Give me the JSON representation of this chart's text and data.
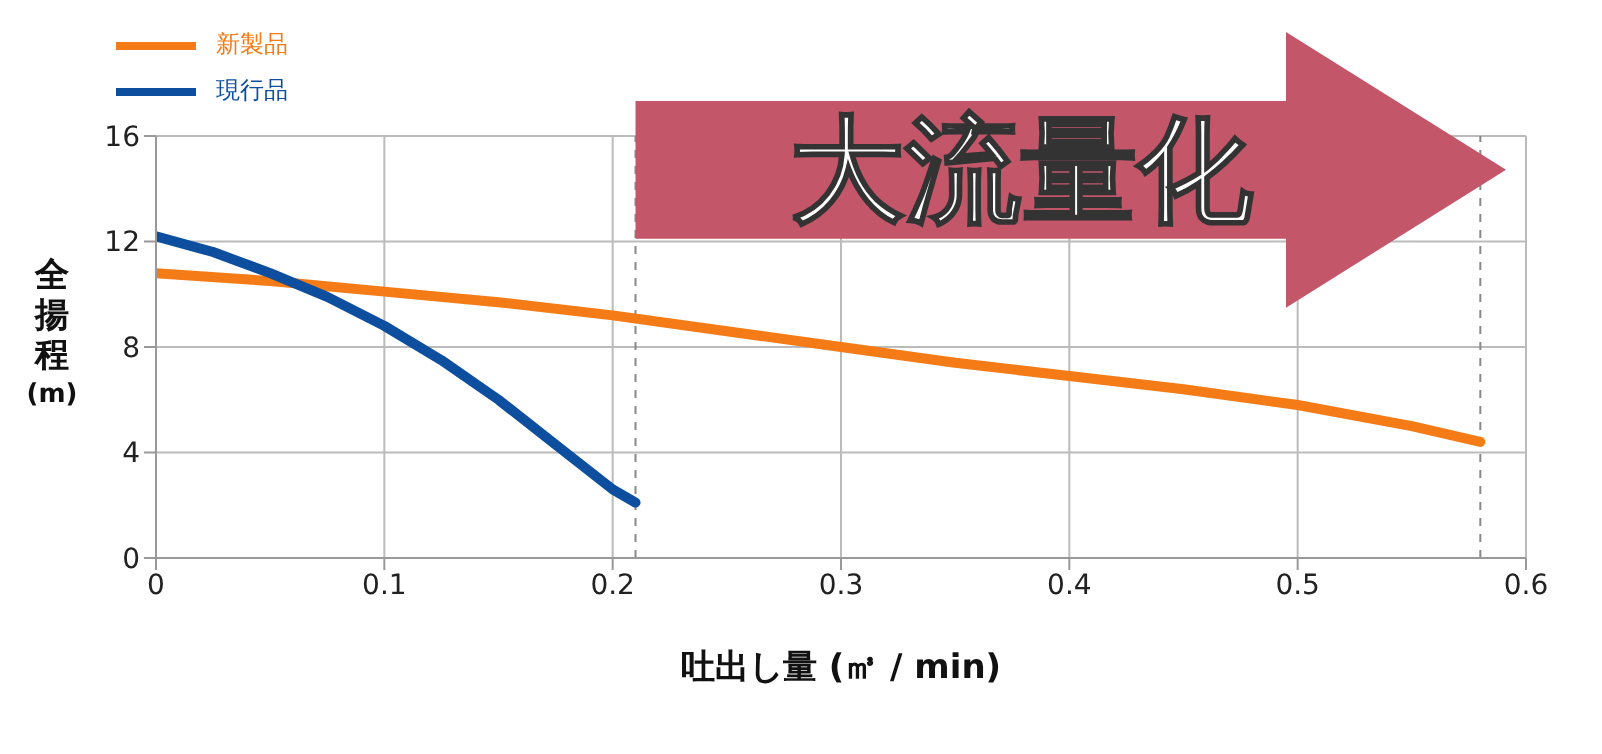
{
  "chart_data": {
    "type": "line",
    "xlabel": "吐出し量 (㎥ / min)",
    "ylabel": "全揚程 (m)",
    "annotations": [
      "大流量化"
    ],
    "xlim": [
      0,
      0.6
    ],
    "xticks": [
      0,
      0.1,
      0.2,
      0.3,
      0.4,
      0.5,
      0.6
    ],
    "ylim": [
      0,
      16
    ],
    "yticks": [
      0,
      4,
      8,
      12,
      16
    ],
    "grid": true,
    "legend": "top left",
    "marker": "none",
    "line_style": "solid",
    "ref_lines": [
      {
        "axis": "x",
        "value": 0.21,
        "color": "#888888",
        "line_style": "dashed"
      },
      {
        "axis": "x",
        "value": 0.58,
        "color": "#888888",
        "line_style": "dashed"
      }
    ],
    "series": [
      {
        "name": "新製品",
        "color": "#f47b16",
        "x": [
          0,
          0.05,
          0.1,
          0.15,
          0.2,
          0.25,
          0.3,
          0.35,
          0.4,
          0.45,
          0.5,
          0.55,
          0.58
        ],
        "values": [
          10.8,
          10.5,
          10.1,
          9.7,
          9.2,
          8.6,
          8.0,
          7.4,
          6.9,
          6.4,
          5.8,
          5.0,
          4.4
        ]
      },
      {
        "name": "現行品",
        "color": "#0d4f9e",
        "x": [
          0,
          0.025,
          0.05,
          0.075,
          0.1,
          0.125,
          0.15,
          0.175,
          0.2,
          0.21
        ],
        "values": [
          12.2,
          11.6,
          10.8,
          9.9,
          8.8,
          7.5,
          6.0,
          4.3,
          2.6,
          2.1
        ]
      }
    ]
  }
}
